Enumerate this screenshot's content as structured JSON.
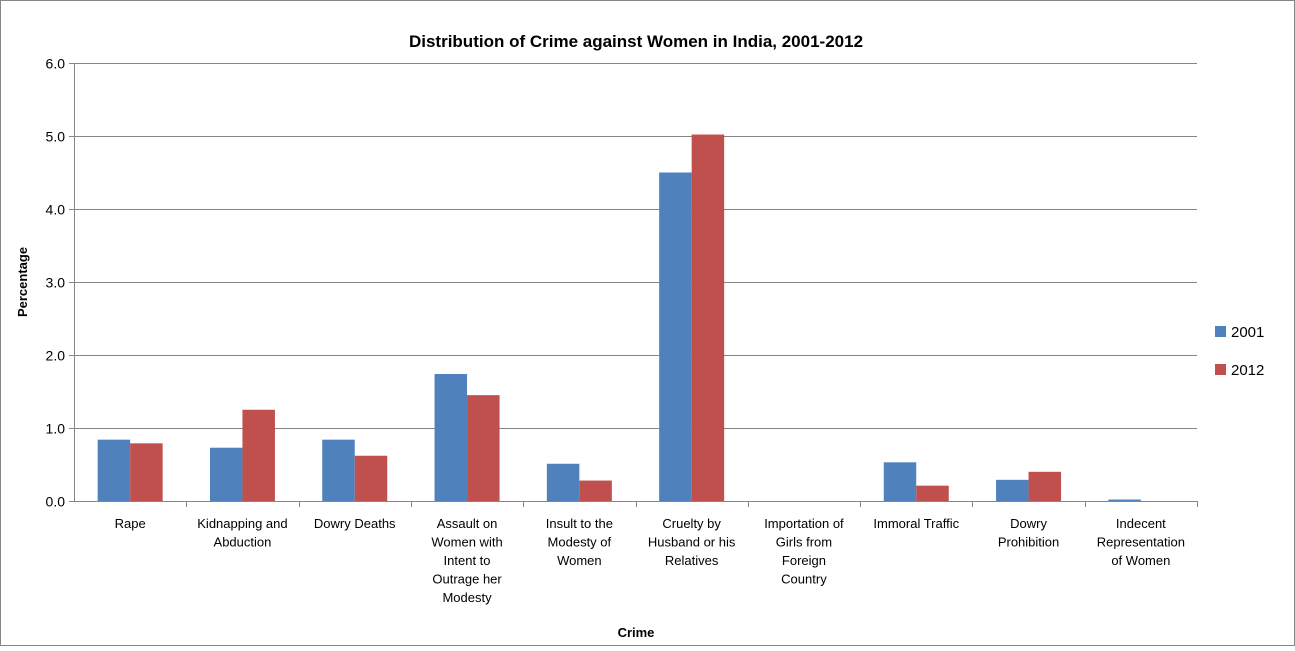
{
  "chart_data": {
    "type": "bar",
    "title": "Distribution of Crime against Women in India, 2001-2012",
    "xlabel": "Crime",
    "ylabel": "Percentage",
    "ylim": [
      0,
      6
    ],
    "yticks": [
      "0.0",
      "1.0",
      "2.0",
      "3.0",
      "4.0",
      "5.0",
      "6.0"
    ],
    "grid": true,
    "legend_position": "right",
    "categories": [
      "Rape",
      "Kidnapping and Abduction",
      "Dowry Deaths",
      "Assault on Women with Intent to Outrage her Modesty",
      "Insult to the Modesty of Women",
      "Cruelty by Husband or his Relatives",
      "Importation of Girls from Foreign Country",
      "Immoral Traffic",
      "Dowry Prohibition",
      "Indecent Representation of Women"
    ],
    "category_label_lines": [
      [
        "Rape"
      ],
      [
        "Kidnapping and",
        "Abduction"
      ],
      [
        "Dowry Deaths"
      ],
      [
        "Assault on",
        "Women with",
        "Intent to",
        "Outrage her",
        "Modesty"
      ],
      [
        "Insult to the",
        "Modesty of",
        "Women"
      ],
      [
        "Cruelty by",
        "Husband or his",
        "Relatives"
      ],
      [
        "Importation of",
        "Girls from",
        "Foreign",
        "Country"
      ],
      [
        "Immoral Traffic"
      ],
      [
        "Dowry",
        "Prohibition"
      ],
      [
        "Indecent",
        "Representation",
        "of Women"
      ]
    ],
    "series": [
      {
        "name": "2001",
        "color": "#4F81BD",
        "values": [
          0.84,
          0.73,
          0.84,
          1.74,
          0.51,
          4.5,
          0.0,
          0.53,
          0.29,
          0.02
        ]
      },
      {
        "name": "2012",
        "color": "#C0504D",
        "values": [
          0.79,
          1.25,
          0.62,
          1.45,
          0.28,
          5.02,
          0.0,
          0.21,
          0.4,
          0.0
        ]
      }
    ]
  }
}
